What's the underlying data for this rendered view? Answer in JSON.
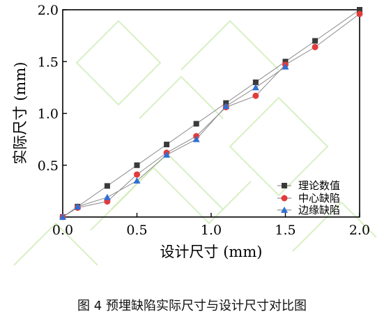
{
  "chart_data": {
    "type": "line",
    "x": [
      0.0,
      0.1,
      0.3,
      0.5,
      0.7,
      0.9,
      1.1,
      1.3,
      1.5,
      1.7,
      2.0
    ],
    "series": [
      {
        "name": "理论数值",
        "marker": "square",
        "color": "#3a3a3a",
        "x": [
          0.0,
          0.1,
          0.3,
          0.5,
          0.7,
          0.9,
          1.1,
          1.3,
          1.5,
          1.7,
          2.0
        ],
        "values": [
          0.0,
          0.1,
          0.3,
          0.5,
          0.7,
          0.9,
          1.1,
          1.3,
          1.5,
          1.7,
          2.0
        ]
      },
      {
        "name": "中心缺陷",
        "marker": "circle",
        "color": "#e23b3b",
        "x": [
          0.0,
          0.1,
          0.3,
          0.5,
          0.7,
          0.9,
          1.1,
          1.3,
          1.5,
          1.7,
          2.0
        ],
        "values": [
          0.0,
          0.09,
          0.15,
          0.41,
          0.62,
          0.78,
          1.06,
          1.17,
          1.47,
          1.64,
          1.96
        ]
      },
      {
        "name": "边缘缺陷",
        "marker": "triangle",
        "color": "#2f6fd6",
        "x": [
          0.0,
          0.1,
          0.3,
          0.5,
          0.7,
          0.9,
          1.1,
          1.3,
          1.5
        ],
        "values": [
          0.0,
          0.1,
          0.19,
          0.35,
          0.6,
          0.75,
          1.07,
          1.25,
          1.45
        ]
      }
    ],
    "xlabel": "设计尺寸 (mm)",
    "ylabel": "实际尺寸 (mm)",
    "xlim": [
      0.0,
      2.0
    ],
    "ylim": [
      0.0,
      2.0
    ],
    "xticks": [
      "0.0",
      "0.5",
      "1.0",
      "1.5",
      "2.0"
    ],
    "yticks": [
      "0.5",
      "1.0",
      "1.5",
      "2.0"
    ],
    "grid": false,
    "legend_position": "bottom-right"
  },
  "caption": "图 4 预埋缺陷实际尺寸与设计尺寸对比图"
}
